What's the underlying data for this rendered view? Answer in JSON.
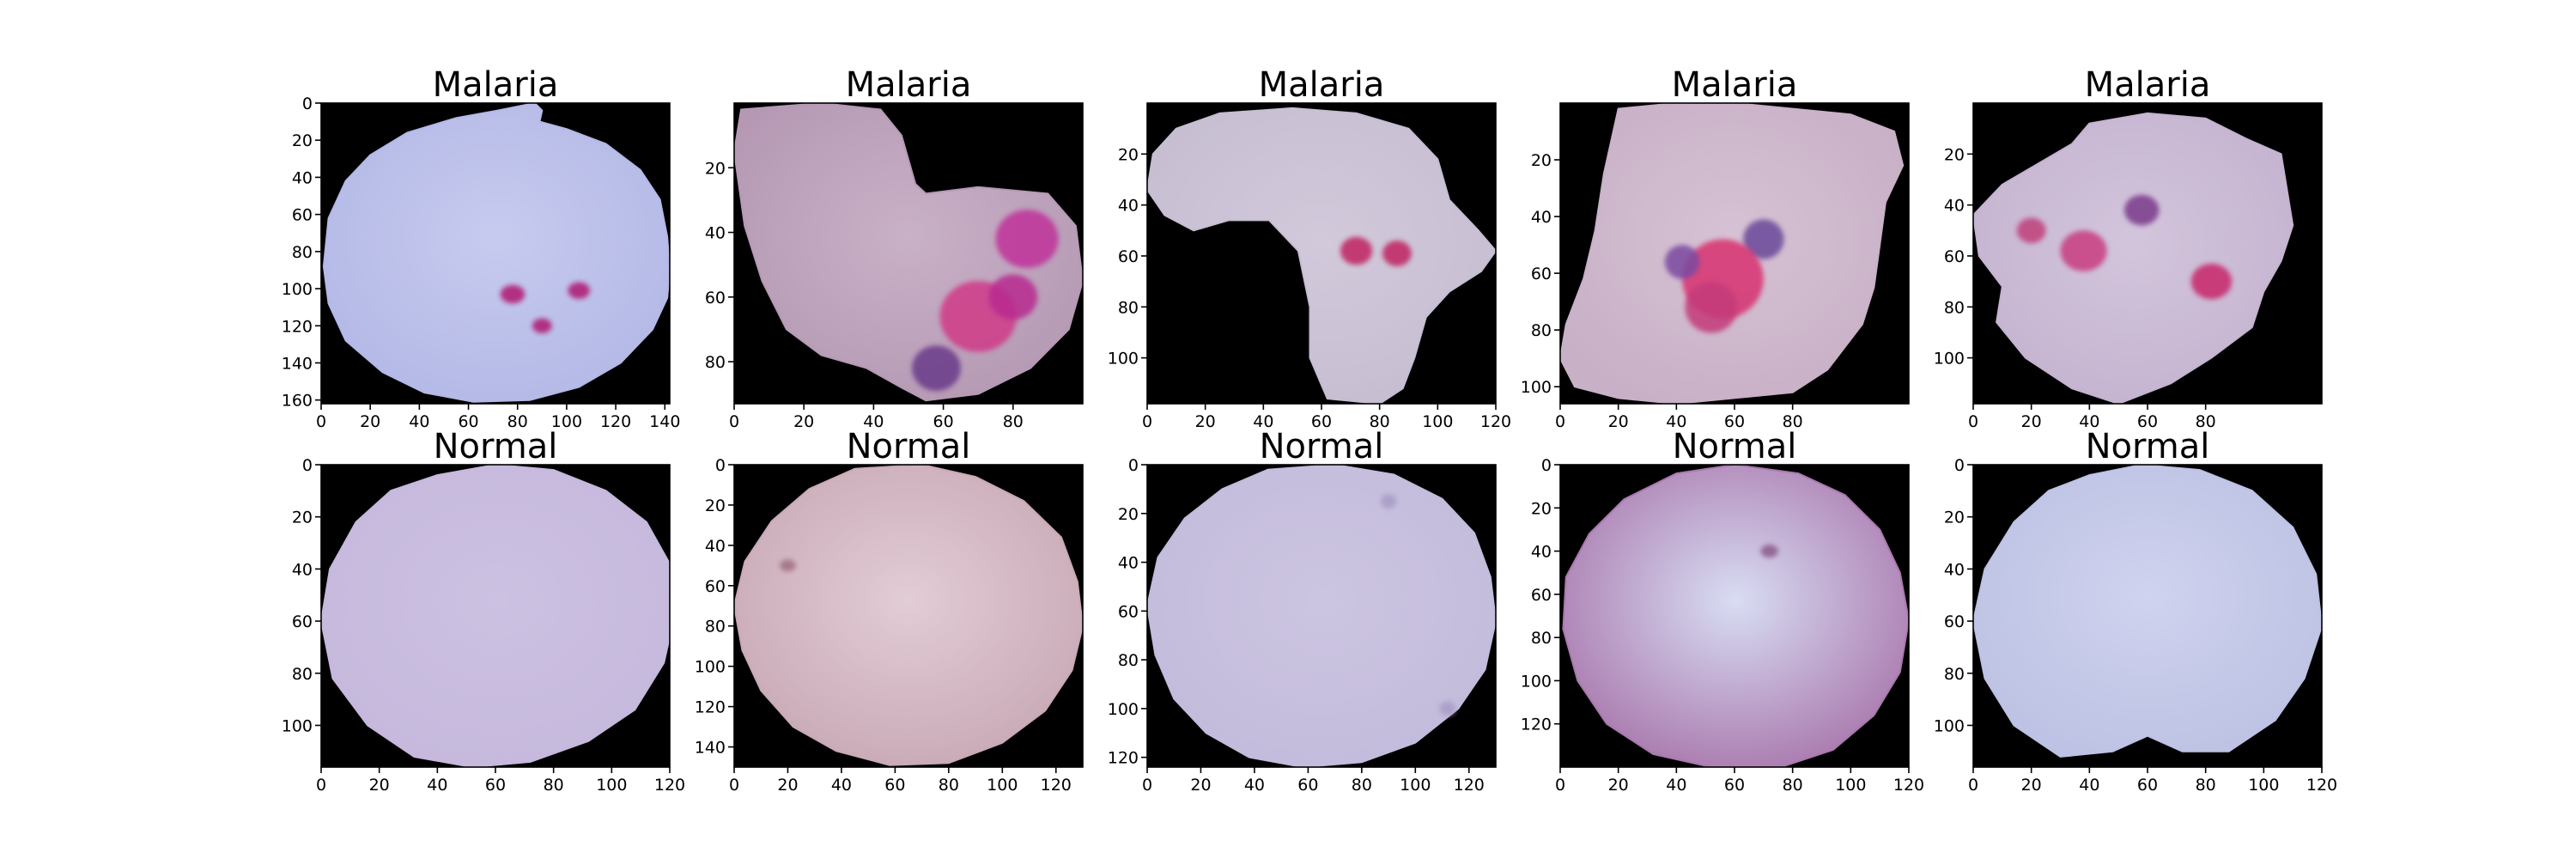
{
  "chart_data": {
    "type": "image-grid",
    "rows": 2,
    "cols": 5,
    "panels": [
      {
        "title": "Malaria",
        "width": 142,
        "height": 162,
        "xticks": [
          0,
          20,
          40,
          60,
          80,
          100,
          120,
          140
        ],
        "yticks": [
          0,
          20,
          40,
          60,
          80,
          100,
          120,
          140,
          160
        ],
        "cell_color": "#b3b8e6",
        "inner_color": "#c7cbef",
        "outline": [
          [
            87,
            0
          ],
          [
            90,
            4
          ],
          [
            89,
            10
          ],
          [
            100,
            14
          ],
          [
            116,
            22
          ],
          [
            130,
            36
          ],
          [
            138,
            52
          ],
          [
            141,
            72
          ],
          [
            142,
            90
          ],
          [
            141,
            105
          ],
          [
            135,
            122
          ],
          [
            122,
            140
          ],
          [
            105,
            153
          ],
          [
            85,
            160
          ],
          [
            62,
            161
          ],
          [
            42,
            156
          ],
          [
            25,
            145
          ],
          [
            10,
            128
          ],
          [
            3,
            108
          ],
          [
            1,
            88
          ],
          [
            3,
            62
          ],
          [
            10,
            42
          ],
          [
            20,
            28
          ],
          [
            35,
            16
          ],
          [
            55,
            8
          ],
          [
            72,
            4
          ]
        ],
        "spots": [
          {
            "x": 78,
            "y": 103,
            "r": 5,
            "color": "#b01870"
          },
          {
            "x": 105,
            "y": 101,
            "r": 4.5,
            "color": "#b01870"
          },
          {
            "x": 90,
            "y": 120,
            "r": 4,
            "color": "#b01870"
          }
        ]
      },
      {
        "title": "Malaria",
        "width": 100,
        "height": 93,
        "xticks": [
          0,
          20,
          40,
          60,
          80
        ],
        "yticks": [
          20,
          40,
          60,
          80
        ],
        "cell_color": "#b599b4",
        "inner_color": "#c9b1c7",
        "outline": [
          [
            2,
            2
          ],
          [
            25,
            0
          ],
          [
            42,
            2
          ],
          [
            48,
            10
          ],
          [
            52,
            25
          ],
          [
            55,
            28
          ],
          [
            70,
            26
          ],
          [
            90,
            28
          ],
          [
            98,
            38
          ],
          [
            100,
            55
          ],
          [
            96,
            70
          ],
          [
            85,
            82
          ],
          [
            70,
            90
          ],
          [
            55,
            92
          ],
          [
            48,
            88
          ],
          [
            38,
            82
          ],
          [
            25,
            78
          ],
          [
            15,
            70
          ],
          [
            8,
            55
          ],
          [
            3,
            38
          ],
          [
            0,
            15
          ]
        ],
        "spots": [
          {
            "x": 84,
            "y": 42,
            "r": 9,
            "color": "#c0309a"
          },
          {
            "x": 70,
            "y": 66,
            "r": 11,
            "color": "#d03a88"
          },
          {
            "x": 58,
            "y": 82,
            "r": 7,
            "color": "#6a3a8a"
          },
          {
            "x": 80,
            "y": 60,
            "r": 7,
            "color": "#b82a90"
          }
        ]
      },
      {
        "title": "Malaria",
        "width": 120,
        "height": 118,
        "xticks": [
          0,
          20,
          40,
          60,
          80,
          100,
          120
        ],
        "yticks": [
          20,
          40,
          60,
          80,
          100
        ],
        "cell_color": "#c6bdd1",
        "inner_color": "#d2cadb",
        "outline": [
          [
            2,
            20
          ],
          [
            10,
            10
          ],
          [
            25,
            4
          ],
          [
            50,
            2
          ],
          [
            72,
            4
          ],
          [
            90,
            10
          ],
          [
            100,
            22
          ],
          [
            104,
            38
          ],
          [
            114,
            50
          ],
          [
            120,
            58
          ],
          [
            115,
            66
          ],
          [
            104,
            74
          ],
          [
            96,
            84
          ],
          [
            92,
            100
          ],
          [
            88,
            112
          ],
          [
            80,
            118
          ],
          [
            62,
            116
          ],
          [
            56,
            100
          ],
          [
            56,
            80
          ],
          [
            52,
            58
          ],
          [
            42,
            46
          ],
          [
            28,
            46
          ],
          [
            16,
            50
          ],
          [
            6,
            44
          ],
          [
            0,
            34
          ]
        ],
        "spots": [
          {
            "x": 72,
            "y": 58,
            "r": 5.5,
            "color": "#c02060"
          },
          {
            "x": 86,
            "y": 59,
            "r": 5,
            "color": "#c02060"
          }
        ]
      },
      {
        "title": "Malaria",
        "width": 120,
        "height": 106,
        "xticks": [
          0,
          20,
          40,
          60,
          80
        ],
        "yticks": [
          20,
          40,
          60,
          80,
          100
        ],
        "cell_color": "#c8b0c6",
        "inner_color": "#d6c2d4",
        "outline": [
          [
            20,
            2
          ],
          [
            40,
            0
          ],
          [
            60,
            0
          ],
          [
            80,
            2
          ],
          [
            100,
            4
          ],
          [
            115,
            10
          ],
          [
            118,
            22
          ],
          [
            112,
            35
          ],
          [
            110,
            50
          ],
          [
            108,
            65
          ],
          [
            104,
            78
          ],
          [
            92,
            94
          ],
          [
            80,
            102
          ],
          [
            60,
            104
          ],
          [
            40,
            106
          ],
          [
            20,
            104
          ],
          [
            5,
            100
          ],
          [
            0,
            90
          ],
          [
            2,
            78
          ],
          [
            8,
            62
          ],
          [
            12,
            45
          ],
          [
            15,
            25
          ]
        ],
        "spots": [
          {
            "x": 70,
            "y": 48,
            "r": 7,
            "color": "#6a4a9a"
          },
          {
            "x": 56,
            "y": 62,
            "r": 14,
            "color": "#d8306f"
          },
          {
            "x": 52,
            "y": 72,
            "r": 9,
            "color": "#c43a7a"
          },
          {
            "x": 42,
            "y": 56,
            "r": 6,
            "color": "#7a4aa0"
          }
        ]
      },
      {
        "title": "Malaria",
        "width": 120,
        "height": 118,
        "xticks": [
          0,
          20,
          40,
          60,
          80
        ],
        "yticks": [
          20,
          40,
          60,
          80,
          100
        ],
        "cell_color": "#c4b3cf",
        "inner_color": "#d3c5dc",
        "outline": [
          [
            40,
            8
          ],
          [
            60,
            4
          ],
          [
            80,
            6
          ],
          [
            94,
            14
          ],
          [
            106,
            20
          ],
          [
            108,
            34
          ],
          [
            110,
            48
          ],
          [
            106,
            62
          ],
          [
            100,
            74
          ],
          [
            96,
            88
          ],
          [
            82,
            100
          ],
          [
            68,
            110
          ],
          [
            50,
            118
          ],
          [
            34,
            112
          ],
          [
            18,
            100
          ],
          [
            8,
            86
          ],
          [
            10,
            72
          ],
          [
            2,
            60
          ],
          [
            0,
            44
          ],
          [
            10,
            32
          ],
          [
            22,
            24
          ],
          [
            34,
            16
          ]
        ],
        "spots": [
          {
            "x": 38,
            "y": 58,
            "r": 8,
            "color": "#c83c80"
          },
          {
            "x": 58,
            "y": 42,
            "r": 6,
            "color": "#7a3a8a"
          },
          {
            "x": 82,
            "y": 70,
            "r": 7,
            "color": "#c8286a"
          },
          {
            "x": 20,
            "y": 50,
            "r": 5,
            "color": "#c0407a"
          }
        ]
      },
      {
        "title": "Normal",
        "width": 120,
        "height": 116,
        "xticks": [
          0,
          20,
          40,
          60,
          80,
          100,
          120
        ],
        "yticks": [
          0,
          20,
          40,
          60,
          80,
          100
        ],
        "cell_color": "#c5b8dc",
        "inner_color": "#cdc1e2",
        "outline": [
          [
            40,
            4
          ],
          [
            60,
            0
          ],
          [
            80,
            2
          ],
          [
            98,
            10
          ],
          [
            112,
            22
          ],
          [
            120,
            38
          ],
          [
            122,
            56
          ],
          [
            118,
            76
          ],
          [
            108,
            94
          ],
          [
            92,
            106
          ],
          [
            72,
            114
          ],
          [
            52,
            116
          ],
          [
            32,
            112
          ],
          [
            16,
            100
          ],
          [
            4,
            82
          ],
          [
            0,
            60
          ],
          [
            3,
            40
          ],
          [
            12,
            22
          ],
          [
            24,
            10
          ]
        ],
        "spots": []
      },
      {
        "title": "Normal",
        "width": 130,
        "height": 150,
        "xticks": [
          0,
          20,
          40,
          60,
          80,
          100,
          120
        ],
        "yticks": [
          0,
          20,
          40,
          60,
          80,
          100,
          120,
          140
        ],
        "cell_color": "#c8a9b6",
        "inner_color": "#e2ccd6",
        "outline": [
          [
            45,
            2
          ],
          [
            70,
            0
          ],
          [
            90,
            6
          ],
          [
            108,
            18
          ],
          [
            122,
            36
          ],
          [
            128,
            58
          ],
          [
            130,
            80
          ],
          [
            126,
            102
          ],
          [
            116,
            122
          ],
          [
            100,
            138
          ],
          [
            80,
            148
          ],
          [
            58,
            149
          ],
          [
            38,
            142
          ],
          [
            22,
            130
          ],
          [
            10,
            112
          ],
          [
            3,
            92
          ],
          [
            0,
            70
          ],
          [
            4,
            48
          ],
          [
            14,
            28
          ],
          [
            28,
            12
          ]
        ],
        "spots": [
          {
            "x": 20,
            "y": 50,
            "r": 3,
            "color": "#a07080"
          }
        ]
      },
      {
        "title": "Normal",
        "width": 130,
        "height": 124,
        "xticks": [
          0,
          20,
          40,
          60,
          80,
          100,
          120
        ],
        "yticks": [
          0,
          20,
          40,
          60,
          80,
          100,
          120
        ],
        "cell_color": "#c3bbdb",
        "inner_color": "#ccc5e1",
        "outline": [
          [
            45,
            2
          ],
          [
            70,
            0
          ],
          [
            92,
            4
          ],
          [
            110,
            14
          ],
          [
            122,
            28
          ],
          [
            128,
            46
          ],
          [
            130,
            64
          ],
          [
            126,
            84
          ],
          [
            116,
            100
          ],
          [
            100,
            114
          ],
          [
            80,
            122
          ],
          [
            58,
            124
          ],
          [
            38,
            120
          ],
          [
            22,
            110
          ],
          [
            10,
            96
          ],
          [
            3,
            78
          ],
          [
            0,
            58
          ],
          [
            4,
            38
          ],
          [
            14,
            22
          ],
          [
            28,
            10
          ]
        ],
        "spots": [
          {
            "x": 90,
            "y": 15,
            "r": 3,
            "color": "#a89cc6"
          },
          {
            "x": 112,
            "y": 100,
            "r": 3,
            "color": "#a89cc6"
          }
        ]
      },
      {
        "title": "Normal",
        "width": 120,
        "height": 140,
        "xticks": [
          0,
          20,
          40,
          60,
          80,
          100,
          120
        ],
        "yticks": [
          0,
          20,
          40,
          60,
          80,
          100,
          120
        ],
        "cell_color": "#a978ad",
        "inner_color": "#d8ddf3",
        "outline": [
          [
            40,
            4
          ],
          [
            60,
            0
          ],
          [
            82,
            4
          ],
          [
            98,
            14
          ],
          [
            110,
            30
          ],
          [
            117,
            50
          ],
          [
            120,
            72
          ],
          [
            117,
            96
          ],
          [
            108,
            116
          ],
          [
            94,
            132
          ],
          [
            76,
            140
          ],
          [
            52,
            140
          ],
          [
            32,
            134
          ],
          [
            16,
            120
          ],
          [
            6,
            100
          ],
          [
            1,
            76
          ],
          [
            2,
            52
          ],
          [
            10,
            32
          ],
          [
            22,
            16
          ]
        ],
        "spots": [
          {
            "x": 72,
            "y": 40,
            "r": 3,
            "color": "#8a5a8a"
          }
        ]
      },
      {
        "title": "Normal",
        "width": 120,
        "height": 116,
        "xticks": [
          0,
          20,
          40,
          60,
          80,
          100,
          120
        ],
        "yticks": [
          0,
          20,
          40,
          60,
          80,
          100
        ],
        "cell_color": "#bdc1e3",
        "inner_color": "#cfd3ef",
        "outline": [
          [
            40,
            4
          ],
          [
            58,
            0
          ],
          [
            78,
            2
          ],
          [
            96,
            10
          ],
          [
            110,
            24
          ],
          [
            118,
            42
          ],
          [
            120,
            62
          ],
          [
            114,
            82
          ],
          [
            104,
            98
          ],
          [
            88,
            110
          ],
          [
            72,
            110
          ],
          [
            60,
            104
          ],
          [
            48,
            110
          ],
          [
            30,
            112
          ],
          [
            14,
            100
          ],
          [
            4,
            82
          ],
          [
            0,
            60
          ],
          [
            4,
            40
          ],
          [
            14,
            22
          ],
          [
            26,
            10
          ]
        ],
        "spots": []
      }
    ]
  }
}
